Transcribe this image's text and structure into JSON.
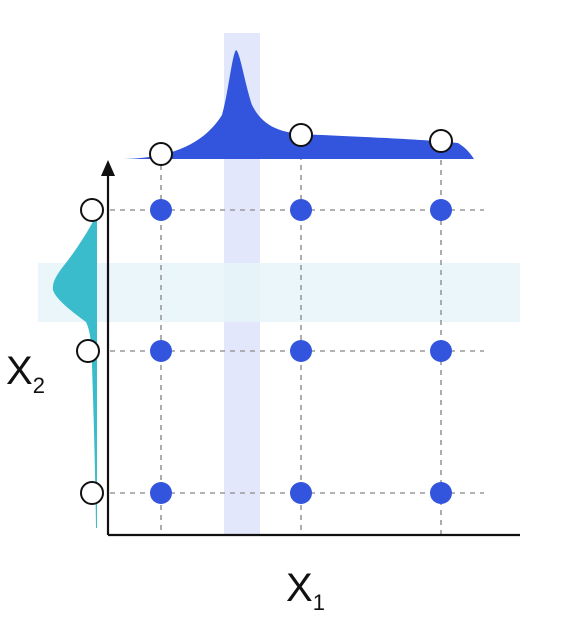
{
  "labels": {
    "x_axis": "X",
    "x_axis_subscript": "1",
    "y_axis": "X",
    "y_axis_subscript": "2"
  },
  "grid": {
    "columns": 3,
    "rows": 3
  },
  "colors": {
    "background": "#ffffff",
    "x_density_fill": "#3355dd",
    "y_density_fill": "#3bbccc",
    "grid_point": "#3355dd",
    "gridline": "#999999",
    "axis": "#111111",
    "x_band": "#dde3fa",
    "y_band": "#e6f5f8",
    "marginal_point_fill": "#ffffff",
    "marginal_point_stroke": "#111111"
  },
  "icons": {
    "axis_arrow": "arrow-up-icon"
  }
}
